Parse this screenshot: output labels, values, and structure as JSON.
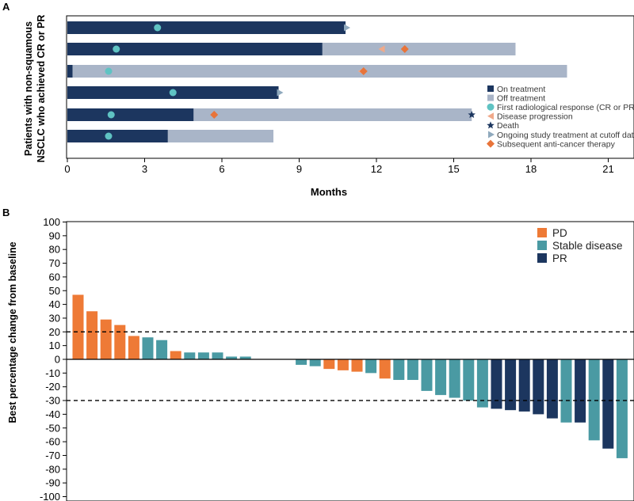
{
  "colors": {
    "on_treatment": "#1c365f",
    "off_treatment": "#a9b5c8",
    "response": "#5fc3c3",
    "progression": "#f0a98a",
    "death": "#1c365f",
    "ongoing": "#8fa9bd",
    "subsequent": "#e8743a",
    "pd": "#ee7a36",
    "stable": "#4a9aa3",
    "pr": "#1c365f"
  },
  "chart_data": [
    {
      "panel": "A",
      "type": "swimmer",
      "xlabel": "Months",
      "ylabel_line1": "Patients with non-squamous",
      "ylabel_line2": "NSCLC who achieved CR or PR",
      "xlim": [
        0,
        22
      ],
      "xticks": [
        0,
        3,
        6,
        9,
        12,
        15,
        18,
        21
      ],
      "legend": [
        {
          "label": "On treatment",
          "symbol": "square",
          "color_key": "on_treatment"
        },
        {
          "label": "Off treatment",
          "symbol": "square",
          "color_key": "off_treatment"
        },
        {
          "label": "First radiological response (CR or PR)",
          "symbol": "circle",
          "color_key": "response"
        },
        {
          "label": "Disease progression",
          "symbol": "triangle-left",
          "color_key": "progression"
        },
        {
          "label": "Death",
          "symbol": "star",
          "color_key": "death"
        },
        {
          "label": "Ongoing study treatment at cutoff date",
          "symbol": "triangle-right",
          "color_key": "ongoing"
        },
        {
          "label": "Subsequent anti-cancer therapy",
          "symbol": "diamond",
          "color_key": "subsequent"
        }
      ],
      "patients": [
        {
          "on_end": 10.8,
          "off_end": null,
          "response": 3.5,
          "progression": null,
          "death": null,
          "ongoing": 10.8,
          "subsequent": null
        },
        {
          "on_end": 9.9,
          "off_end": 17.4,
          "response": 1.9,
          "progression": 12.2,
          "death": null,
          "ongoing": null,
          "subsequent": 13.1
        },
        {
          "on_end": 0.2,
          "off_end": 19.4,
          "response": 1.6,
          "progression": 11.4,
          "death": null,
          "ongoing": null,
          "subsequent": 11.5
        },
        {
          "on_end": 8.2,
          "off_end": null,
          "response": 4.1,
          "progression": null,
          "death": null,
          "ongoing": 8.2,
          "subsequent": null
        },
        {
          "on_end": 4.9,
          "off_end": 15.7,
          "response": 1.7,
          "progression": null,
          "death": 15.7,
          "ongoing": null,
          "subsequent": 5.7
        },
        {
          "on_end": 3.9,
          "off_end": 8.0,
          "response": 1.6,
          "progression": null,
          "death": null,
          "ongoing": null,
          "subsequent": null
        }
      ]
    },
    {
      "panel": "B",
      "type": "bar",
      "subtype": "waterfall",
      "ylabel": "Best percentage change from baseline",
      "ylim": [
        -100,
        100
      ],
      "yticks": [
        100,
        90,
        80,
        70,
        60,
        50,
        40,
        30,
        20,
        10,
        0,
        -10,
        -20,
        -30,
        -40,
        -50,
        -60,
        -70,
        -80,
        -90,
        -100
      ],
      "reference_lines": [
        20,
        -30
      ],
      "legend": [
        {
          "label": "PD",
          "color_key": "pd"
        },
        {
          "label": "Stable disease",
          "color_key": "stable"
        },
        {
          "label": "PR",
          "color_key": "pr"
        }
      ],
      "values": [
        47,
        35,
        29,
        25,
        17,
        16,
        14,
        6,
        5,
        5,
        5,
        2,
        2,
        0,
        0,
        0,
        -4,
        -5,
        -7,
        -8,
        -9,
        -10,
        -14,
        -15,
        -15,
        -23,
        -26,
        -28,
        -30,
        -35,
        -36,
        -37,
        -38,
        -40,
        -43,
        -46,
        -46,
        -59,
        -65,
        -72
      ],
      "categories": [
        "PD",
        "PD",
        "PD",
        "PD",
        "PD",
        "Stable disease",
        "Stable disease",
        "PD",
        "Stable disease",
        "Stable disease",
        "Stable disease",
        "Stable disease",
        "Stable disease",
        "",
        "",
        "",
        "Stable disease",
        "Stable disease",
        "PD",
        "PD",
        "PD",
        "Stable disease",
        "PD",
        "Stable disease",
        "Stable disease",
        "Stable disease",
        "Stable disease",
        "Stable disease",
        "Stable disease",
        "Stable disease",
        "PR",
        "PR",
        "PR",
        "PR",
        "PR",
        "Stable disease",
        "PR",
        "Stable disease",
        "PR",
        "Stable disease"
      ]
    }
  ]
}
